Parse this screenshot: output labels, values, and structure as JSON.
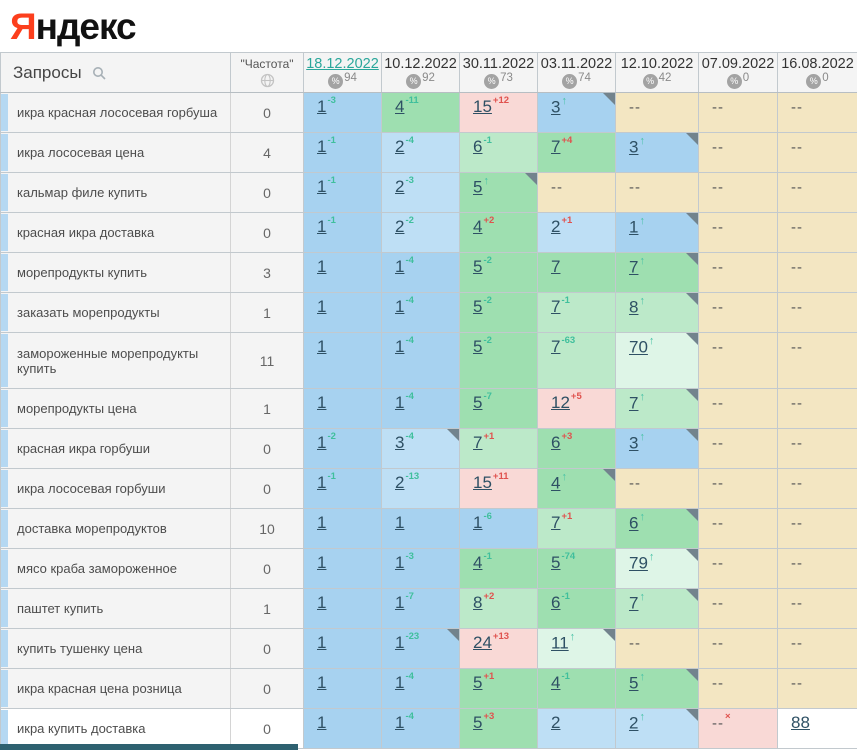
{
  "logo": {
    "ya": "Я",
    "rest": "ндекс"
  },
  "header": {
    "queries_label": "Запросы",
    "frequency_label": "\"Частота\"",
    "dates": [
      {
        "label": "18.12.2022",
        "visibility": "94",
        "active": true
      },
      {
        "label": "10.12.2022",
        "visibility": "92",
        "active": false
      },
      {
        "label": "30.11.2022",
        "visibility": "73",
        "active": false
      },
      {
        "label": "03.11.2022",
        "visibility": "74",
        "active": false
      },
      {
        "label": "12.10.2022",
        "visibility": "42",
        "active": false
      },
      {
        "label": "07.09.2022",
        "visibility": "0",
        "active": false
      },
      {
        "label": "16.08.2022",
        "visibility": "0",
        "active": false
      }
    ]
  },
  "colors": {
    "accent_red": "#fc3f1d",
    "active_date": "#2aa79b",
    "change_up": "#3fbf9c",
    "change_down": "#e0524e",
    "top3_blue": "#a7d2f0",
    "top10_green": "#9edfb0",
    "dropped_pink": "#f9d9d6",
    "no_data_beige": "#f3e6c2"
  },
  "rows": [
    {
      "query": "икра красная лососевая горбуша",
      "frequency": "0",
      "cells": [
        {
          "pos": "1",
          "change": "-3",
          "dir": "up",
          "bg": "b1"
        },
        {
          "pos": "4",
          "change": "-11",
          "dir": "up",
          "bg": "g1"
        },
        {
          "pos": "15",
          "change": "+12",
          "dir": "down",
          "bg": "pink"
        },
        {
          "pos": "3",
          "change": "↑",
          "dir": "new",
          "bg": "b1",
          "corner": true
        },
        {
          "pos": "--",
          "bg": "beige"
        },
        {
          "pos": "--",
          "bg": "beige"
        },
        {
          "pos": "--",
          "bg": "beige"
        }
      ]
    },
    {
      "query": "икра лососевая цена",
      "frequency": "4",
      "cells": [
        {
          "pos": "1",
          "change": "-1",
          "dir": "up",
          "bg": "b1"
        },
        {
          "pos": "2",
          "change": "-4",
          "dir": "up",
          "bg": "b2"
        },
        {
          "pos": "6",
          "change": "-1",
          "dir": "up",
          "bg": "g2"
        },
        {
          "pos": "7",
          "change": "+4",
          "dir": "down",
          "bg": "g1"
        },
        {
          "pos": "3",
          "change": "↑",
          "dir": "new",
          "bg": "b1",
          "corner": true
        },
        {
          "pos": "--",
          "bg": "beige"
        },
        {
          "pos": "--",
          "bg": "beige"
        }
      ]
    },
    {
      "query": "кальмар филе купить",
      "frequency": "0",
      "cells": [
        {
          "pos": "1",
          "change": "-1",
          "dir": "up",
          "bg": "b1"
        },
        {
          "pos": "2",
          "change": "-3",
          "dir": "up",
          "bg": "b2"
        },
        {
          "pos": "5",
          "change": "↑",
          "dir": "new",
          "bg": "g1",
          "corner": true
        },
        {
          "pos": "--",
          "bg": "beige"
        },
        {
          "pos": "--",
          "bg": "beige"
        },
        {
          "pos": "--",
          "bg": "beige"
        },
        {
          "pos": "--",
          "bg": "beige"
        }
      ]
    },
    {
      "query": "красная икра доставка",
      "frequency": "0",
      "cells": [
        {
          "pos": "1",
          "change": "-1",
          "dir": "up",
          "bg": "b1"
        },
        {
          "pos": "2",
          "change": "-2",
          "dir": "up",
          "bg": "b2"
        },
        {
          "pos": "4",
          "change": "+2",
          "dir": "down",
          "bg": "g1"
        },
        {
          "pos": "2",
          "change": "+1",
          "dir": "down",
          "bg": "b2"
        },
        {
          "pos": "1",
          "change": "↑",
          "dir": "new",
          "bg": "b1",
          "corner": true
        },
        {
          "pos": "--",
          "bg": "beige"
        },
        {
          "pos": "--",
          "bg": "beige"
        }
      ]
    },
    {
      "query": "морепродукты купить",
      "frequency": "3",
      "cells": [
        {
          "pos": "1",
          "bg": "b1"
        },
        {
          "pos": "1",
          "change": "-4",
          "dir": "up",
          "bg": "b1"
        },
        {
          "pos": "5",
          "change": "-2",
          "dir": "up",
          "bg": "g1"
        },
        {
          "pos": "7",
          "bg": "g1"
        },
        {
          "pos": "7",
          "change": "↑",
          "dir": "new",
          "bg": "g1",
          "corner": true
        },
        {
          "pos": "--",
          "bg": "beige"
        },
        {
          "pos": "--",
          "bg": "beige"
        }
      ]
    },
    {
      "query": "заказать морепродукты",
      "frequency": "1",
      "cells": [
        {
          "pos": "1",
          "bg": "b1"
        },
        {
          "pos": "1",
          "change": "-4",
          "dir": "up",
          "bg": "b1"
        },
        {
          "pos": "5",
          "change": "-2",
          "dir": "up",
          "bg": "g1"
        },
        {
          "pos": "7",
          "change": "-1",
          "dir": "up",
          "bg": "g2"
        },
        {
          "pos": "8",
          "change": "↑",
          "dir": "new",
          "bg": "g2",
          "corner": true
        },
        {
          "pos": "--",
          "bg": "beige"
        },
        {
          "pos": "--",
          "bg": "beige"
        }
      ]
    },
    {
      "query": "замороженные морепродукты купить",
      "frequency": "11",
      "tall": true,
      "cells": [
        {
          "pos": "1",
          "bg": "b1"
        },
        {
          "pos": "1",
          "change": "-4",
          "dir": "up",
          "bg": "b1"
        },
        {
          "pos": "5",
          "change": "-2",
          "dir": "up",
          "bg": "g1"
        },
        {
          "pos": "7",
          "change": "-63",
          "dir": "up",
          "bg": "g2"
        },
        {
          "pos": "70",
          "change": "↑",
          "dir": "new",
          "bg": "mint",
          "corner": true
        },
        {
          "pos": "--",
          "bg": "beige"
        },
        {
          "pos": "--",
          "bg": "beige"
        }
      ]
    },
    {
      "query": "морепродукты цена",
      "frequency": "1",
      "cells": [
        {
          "pos": "1",
          "bg": "b1"
        },
        {
          "pos": "1",
          "change": "-4",
          "dir": "up",
          "bg": "b1"
        },
        {
          "pos": "5",
          "change": "-7",
          "dir": "up",
          "bg": "g1"
        },
        {
          "pos": "12",
          "change": "+5",
          "dir": "down",
          "bg": "pink"
        },
        {
          "pos": "7",
          "change": "↑",
          "dir": "new",
          "bg": "g2",
          "corner": true
        },
        {
          "pos": "--",
          "bg": "beige"
        },
        {
          "pos": "--",
          "bg": "beige"
        }
      ]
    },
    {
      "query": "красная икра горбуши",
      "frequency": "0",
      "cells": [
        {
          "pos": "1",
          "change": "-2",
          "dir": "up",
          "bg": "b1"
        },
        {
          "pos": "3",
          "change": "-4",
          "dir": "up",
          "bg": "b2",
          "corner": true
        },
        {
          "pos": "7",
          "change": "+1",
          "dir": "down",
          "bg": "g2"
        },
        {
          "pos": "6",
          "change": "+3",
          "dir": "down",
          "bg": "g1"
        },
        {
          "pos": "3",
          "change": "↑",
          "dir": "new",
          "bg": "b1",
          "corner": true
        },
        {
          "pos": "--",
          "bg": "beige"
        },
        {
          "pos": "--",
          "bg": "beige"
        }
      ]
    },
    {
      "query": "икра лососевая горбуши",
      "frequency": "0",
      "cells": [
        {
          "pos": "1",
          "change": "-1",
          "dir": "up",
          "bg": "b1"
        },
        {
          "pos": "2",
          "change": "-13",
          "dir": "up",
          "bg": "b2"
        },
        {
          "pos": "15",
          "change": "+11",
          "dir": "down",
          "bg": "pink"
        },
        {
          "pos": "4",
          "change": "↑",
          "dir": "new",
          "bg": "g1",
          "corner": true
        },
        {
          "pos": "--",
          "bg": "beige"
        },
        {
          "pos": "--",
          "bg": "beige"
        },
        {
          "pos": "--",
          "bg": "beige"
        }
      ]
    },
    {
      "query": "доставка морепродуктов",
      "frequency": "10",
      "cells": [
        {
          "pos": "1",
          "bg": "b1"
        },
        {
          "pos": "1",
          "bg": "b1"
        },
        {
          "pos": "1",
          "change": "-6",
          "dir": "up",
          "bg": "b1"
        },
        {
          "pos": "7",
          "change": "+1",
          "dir": "down",
          "bg": "g2"
        },
        {
          "pos": "6",
          "change": "↑",
          "dir": "new",
          "bg": "g1",
          "corner": true
        },
        {
          "pos": "--",
          "bg": "beige"
        },
        {
          "pos": "--",
          "bg": "beige"
        }
      ]
    },
    {
      "query": "мясо краба замороженное",
      "frequency": "0",
      "cells": [
        {
          "pos": "1",
          "bg": "b1"
        },
        {
          "pos": "1",
          "change": "-3",
          "dir": "up",
          "bg": "b1"
        },
        {
          "pos": "4",
          "change": "-1",
          "dir": "up",
          "bg": "g1"
        },
        {
          "pos": "5",
          "change": "-74",
          "dir": "up",
          "bg": "g1"
        },
        {
          "pos": "79",
          "change": "↑",
          "dir": "new",
          "bg": "mint",
          "corner": true
        },
        {
          "pos": "--",
          "bg": "beige"
        },
        {
          "pos": "--",
          "bg": "beige"
        }
      ]
    },
    {
      "query": "паштет купить",
      "frequency": "1",
      "cells": [
        {
          "pos": "1",
          "bg": "b1"
        },
        {
          "pos": "1",
          "change": "-7",
          "dir": "up",
          "bg": "b1"
        },
        {
          "pos": "8",
          "change": "+2",
          "dir": "down",
          "bg": "g2"
        },
        {
          "pos": "6",
          "change": "-1",
          "dir": "up",
          "bg": "g1"
        },
        {
          "pos": "7",
          "change": "↑",
          "dir": "new",
          "bg": "g2",
          "corner": true
        },
        {
          "pos": "--",
          "bg": "beige"
        },
        {
          "pos": "--",
          "bg": "beige"
        }
      ]
    },
    {
      "query": "купить тушенку цена",
      "frequency": "0",
      "cells": [
        {
          "pos": "1",
          "bg": "b1"
        },
        {
          "pos": "1",
          "change": "-23",
          "dir": "up",
          "bg": "b1",
          "corner": true
        },
        {
          "pos": "24",
          "change": "+13",
          "dir": "down",
          "bg": "pink"
        },
        {
          "pos": "11",
          "change": "↑",
          "dir": "new",
          "bg": "mint",
          "corner": true
        },
        {
          "pos": "--",
          "bg": "beige"
        },
        {
          "pos": "--",
          "bg": "beige"
        },
        {
          "pos": "--",
          "bg": "beige"
        }
      ]
    },
    {
      "query": "икра красная цена розница",
      "frequency": "0",
      "cells": [
        {
          "pos": "1",
          "bg": "b1"
        },
        {
          "pos": "1",
          "change": "-4",
          "dir": "up",
          "bg": "b1"
        },
        {
          "pos": "5",
          "change": "+1",
          "dir": "down",
          "bg": "g1"
        },
        {
          "pos": "4",
          "change": "-1",
          "dir": "up",
          "bg": "g1"
        },
        {
          "pos": "5",
          "change": "↑",
          "dir": "new",
          "bg": "g1",
          "corner": true
        },
        {
          "pos": "--",
          "bg": "beige"
        },
        {
          "pos": "--",
          "bg": "beige"
        }
      ]
    },
    {
      "query": "икра купить доставка",
      "frequency": "0",
      "white": true,
      "cells": [
        {
          "pos": "1",
          "bg": "b1"
        },
        {
          "pos": "1",
          "change": "-4",
          "dir": "up",
          "bg": "b1"
        },
        {
          "pos": "5",
          "change": "+3",
          "dir": "down",
          "bg": "g1"
        },
        {
          "pos": "2",
          "bg": "b2"
        },
        {
          "pos": "2",
          "change": "↑",
          "dir": "new",
          "bg": "b2",
          "corner": true
        },
        {
          "pos": "--",
          "change": "×",
          "dir": "down",
          "bg": "pink"
        },
        {
          "pos": "88",
          "bg": "white"
        }
      ]
    }
  ]
}
